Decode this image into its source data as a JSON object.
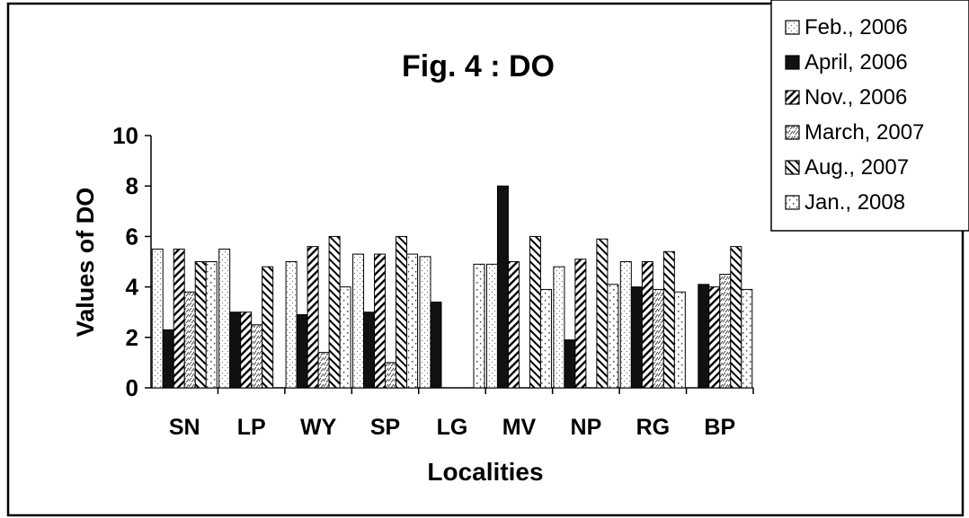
{
  "chart_data": {
    "type": "bar",
    "title": "Fig. 4 : DO",
    "xlabel": "Localities",
    "ylabel": "Values of DO",
    "ylim": [
      0,
      10
    ],
    "yticks": [
      "0",
      "2",
      "4",
      "6",
      "8",
      "10"
    ],
    "grid": false,
    "legend_position": "top-right",
    "categories": [
      "SN",
      "LP",
      "WY",
      "SP",
      "LG",
      "MV",
      "NP",
      "RG",
      "BP"
    ],
    "series": [
      {
        "name": "Feb., 2006",
        "pattern": "dots",
        "values": [
          5.5,
          5.5,
          5.0,
          5.3,
          5.2,
          4.9,
          4.8,
          5.0,
          0
        ]
      },
      {
        "name": "April, 2006",
        "pattern": "solid",
        "values": [
          2.3,
          3.0,
          2.9,
          3.0,
          3.4,
          8.0,
          1.9,
          4.0,
          4.1
        ]
      },
      {
        "name": "Nov., 2006",
        "pattern": "diagonal",
        "values": [
          5.5,
          3.0,
          5.6,
          5.3,
          0,
          5.0,
          5.1,
          5.0,
          4.0
        ]
      },
      {
        "name": "March, 2007",
        "pattern": "dashes",
        "values": [
          3.8,
          2.5,
          1.4,
          1.0,
          0,
          0,
          0,
          3.9,
          4.5
        ]
      },
      {
        "name": "Aug., 2007",
        "pattern": "cross-diagonal",
        "values": [
          5.0,
          4.8,
          6.0,
          6.0,
          0,
          6.0,
          5.9,
          5.4,
          5.6
        ]
      },
      {
        "name": "Jan., 2008",
        "pattern": "sparse-dots",
        "values": [
          5.0,
          0,
          4.0,
          5.3,
          4.9,
          3.9,
          4.1,
          3.8,
          3.9
        ]
      }
    ]
  }
}
